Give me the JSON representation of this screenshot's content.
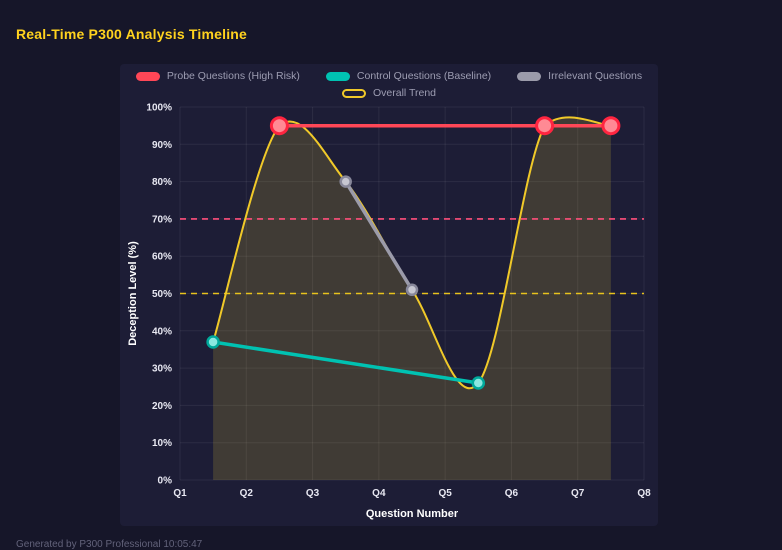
{
  "page": {
    "title": "Real-Time P300 Analysis Timeline",
    "footer": "Generated by P300 Professional    10:05:47"
  },
  "chart_data": {
    "type": "line",
    "title": "Real-Time P300 Analysis Timeline",
    "xlabel": "Question Number",
    "ylabel": "Deception Level (%)",
    "xlim": [
      1,
      8
    ],
    "ylim": [
      0,
      100
    ],
    "x_ticks": [
      {
        "value": 1,
        "label": "Q1"
      },
      {
        "value": 2,
        "label": "Q2"
      },
      {
        "value": 3,
        "label": "Q3"
      },
      {
        "value": 4,
        "label": "Q4"
      },
      {
        "value": 5,
        "label": "Q5"
      },
      {
        "value": 6,
        "label": "Q6"
      },
      {
        "value": 7,
        "label": "Q7"
      },
      {
        "value": 8,
        "label": "Q8"
      }
    ],
    "y_ticks": [
      {
        "value": 0,
        "label": "0%"
      },
      {
        "value": 10,
        "label": "10%"
      },
      {
        "value": 20,
        "label": "20%"
      },
      {
        "value": 30,
        "label": "30%"
      },
      {
        "value": 40,
        "label": "40%"
      },
      {
        "value": 50,
        "label": "50%"
      },
      {
        "value": 60,
        "label": "60%"
      },
      {
        "value": 70,
        "label": "70%"
      },
      {
        "value": 80,
        "label": "80%"
      },
      {
        "value": 90,
        "label": "90%"
      },
      {
        "value": 100,
        "label": "100%"
      }
    ],
    "grid": true,
    "legend_position": "top",
    "reference_lines": [
      {
        "y": 70,
        "color": "#ff4f7b",
        "style": "dashed"
      },
      {
        "y": 50,
        "color": "#e8c31d",
        "style": "dashed"
      }
    ],
    "series": [
      {
        "name": "Probe Questions (High Risk)",
        "color": "#ff4757",
        "chip_style": "solid",
        "line_width": 3.5,
        "smooth": false,
        "points": [
          {
            "x": 2.5,
            "y": 95
          },
          {
            "x": 6.5,
            "y": 95
          },
          {
            "x": 7.5,
            "y": 95
          }
        ],
        "marker": {
          "r": 8,
          "fill": "#ff8a94",
          "stroke": "#ff2540",
          "stroke_width": 3
        }
      },
      {
        "name": "Control Questions (Baseline)",
        "color": "#00c2b2",
        "chip_style": "solid",
        "line_width": 3.5,
        "smooth": false,
        "points": [
          {
            "x": 1.5,
            "y": 37
          },
          {
            "x": 5.5,
            "y": 26
          }
        ],
        "marker": {
          "r": 5.5,
          "fill": "#8ae8e0",
          "stroke": "#00a99b",
          "stroke_width": 2.5
        }
      },
      {
        "name": "Irrelevant Questions",
        "color": "#9b9baa",
        "chip_style": "solid",
        "line_width": 3.5,
        "smooth": false,
        "points": [
          {
            "x": 3.5,
            "y": 80
          },
          {
            "x": 4.5,
            "y": 51
          }
        ],
        "marker": {
          "r": 5,
          "fill": "#c6c6d1",
          "stroke": "#87879a",
          "stroke_width": 2.5
        }
      },
      {
        "name": "Overall Trend",
        "color": "#f0c929",
        "chip_style": "outline",
        "line_width": 2,
        "smooth": true,
        "fill": true,
        "fill_color": "rgba(250, 215, 50, 0.16)",
        "points": [
          {
            "x": 1.5,
            "y": 37
          },
          {
            "x": 2.5,
            "y": 95
          },
          {
            "x": 3.5,
            "y": 80
          },
          {
            "x": 4.5,
            "y": 51
          },
          {
            "x": 5.5,
            "y": 26
          },
          {
            "x": 6.5,
            "y": 95
          },
          {
            "x": 7.5,
            "y": 95
          }
        ],
        "marker": null
      }
    ]
  }
}
